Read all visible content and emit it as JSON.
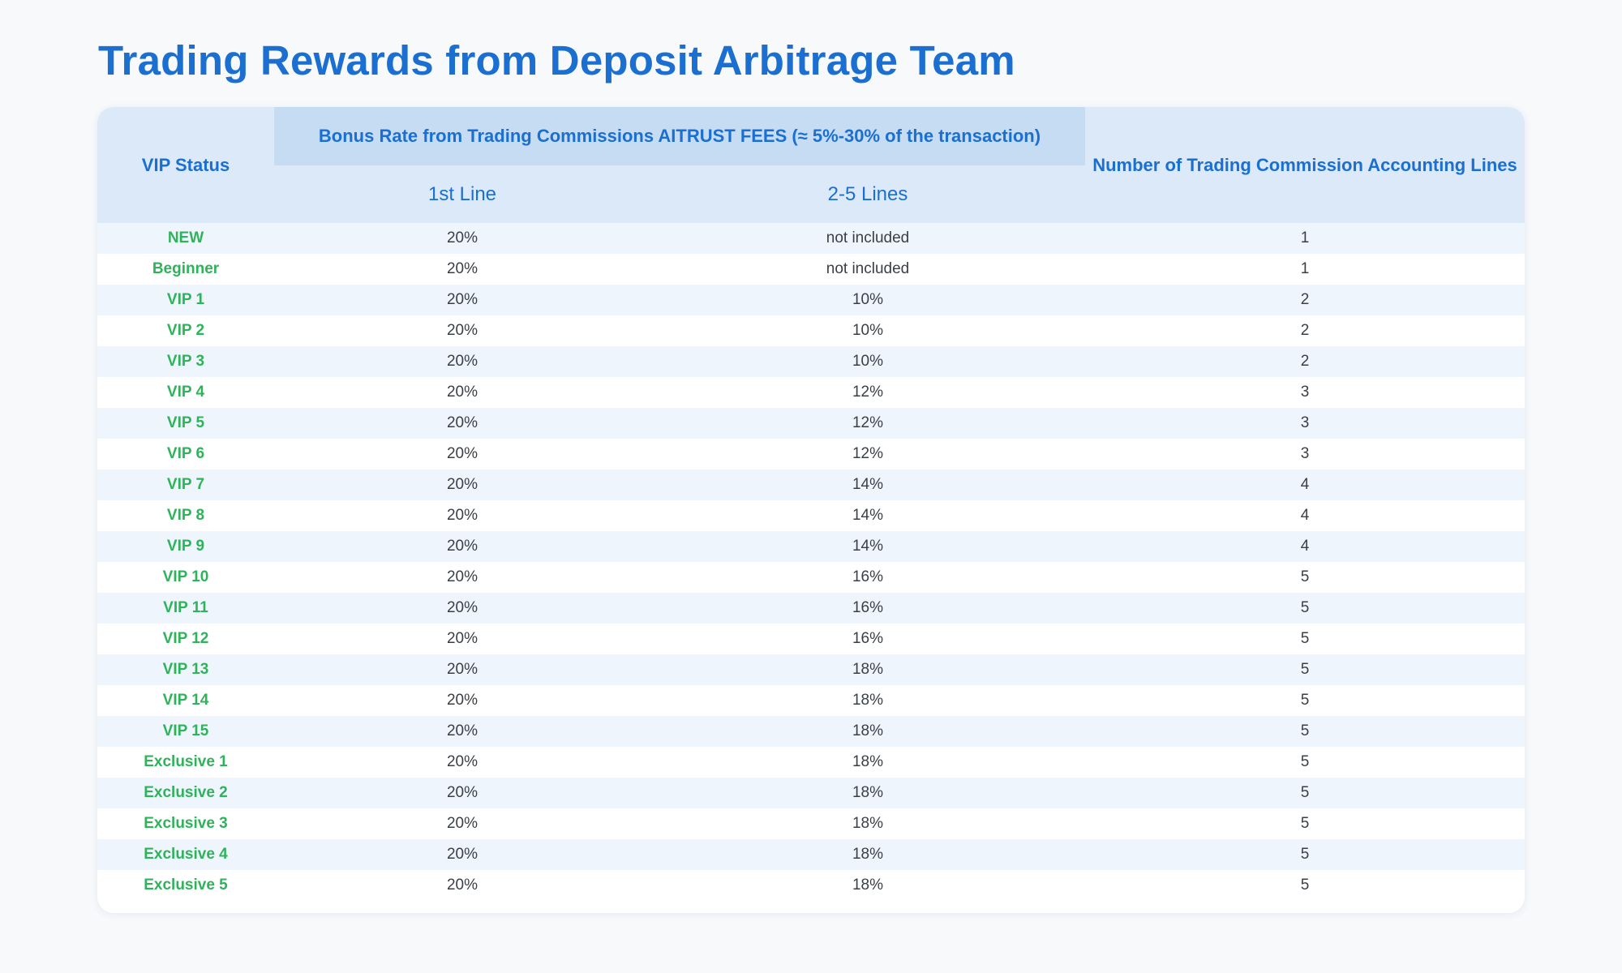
{
  "title": "Trading Rewards from Deposit Arbitrage Team",
  "table": {
    "headers": {
      "vip_status": "VIP Status",
      "bonus_group": "Bonus Rate from Trading Commissions AITRUST FEES (≈ 5%-30% of the transaction)",
      "first_line": "1st Line",
      "lines_2_5": "2-5 Lines",
      "accounting_lines": "Number of Trading Commission Accounting Lines"
    },
    "rows": [
      {
        "status": "NEW",
        "first": "20%",
        "rest": "not included",
        "lines": "1"
      },
      {
        "status": "Beginner",
        "first": "20%",
        "rest": "not included",
        "lines": "1"
      },
      {
        "status": "VIP 1",
        "first": "20%",
        "rest": "10%",
        "lines": "2"
      },
      {
        "status": "VIP 2",
        "first": "20%",
        "rest": "10%",
        "lines": "2"
      },
      {
        "status": "VIP 3",
        "first": "20%",
        "rest": "10%",
        "lines": "2"
      },
      {
        "status": "VIP 4",
        "first": "20%",
        "rest": "12%",
        "lines": "3"
      },
      {
        "status": "VIP 5",
        "first": "20%",
        "rest": "12%",
        "lines": "3"
      },
      {
        "status": "VIP 6",
        "first": "20%",
        "rest": "12%",
        "lines": "3"
      },
      {
        "status": "VIP 7",
        "first": "20%",
        "rest": "14%",
        "lines": "4"
      },
      {
        "status": "VIP 8",
        "first": "20%",
        "rest": "14%",
        "lines": "4"
      },
      {
        "status": "VIP 9",
        "first": "20%",
        "rest": "14%",
        "lines": "4"
      },
      {
        "status": "VIP 10",
        "first": "20%",
        "rest": "16%",
        "lines": "5"
      },
      {
        "status": "VIP 11",
        "first": "20%",
        "rest": "16%",
        "lines": "5"
      },
      {
        "status": "VIP 12",
        "first": "20%",
        "rest": "16%",
        "lines": "5"
      },
      {
        "status": "VIP 13",
        "first": "20%",
        "rest": "18%",
        "lines": "5"
      },
      {
        "status": "VIP 14",
        "first": "20%",
        "rest": "18%",
        "lines": "5"
      },
      {
        "status": "VIP 15",
        "first": "20%",
        "rest": "18%",
        "lines": "5"
      },
      {
        "status": "Exclusive 1",
        "first": "20%",
        "rest": "18%",
        "lines": "5"
      },
      {
        "status": "Exclusive 2",
        "first": "20%",
        "rest": "18%",
        "lines": "5"
      },
      {
        "status": "Exclusive 3",
        "first": "20%",
        "rest": "18%",
        "lines": "5"
      },
      {
        "status": "Exclusive 4",
        "first": "20%",
        "rest": "18%",
        "lines": "5"
      },
      {
        "status": "Exclusive 5",
        "first": "20%",
        "rest": "18%",
        "lines": "5"
      }
    ]
  },
  "colors": {
    "title": "#1a6fd0",
    "header_bg": "#dbe9f9",
    "header_group_bg": "#c6dcf3",
    "status_text": "#2fb35a",
    "row_alt_bg": "#eef5fd"
  }
}
